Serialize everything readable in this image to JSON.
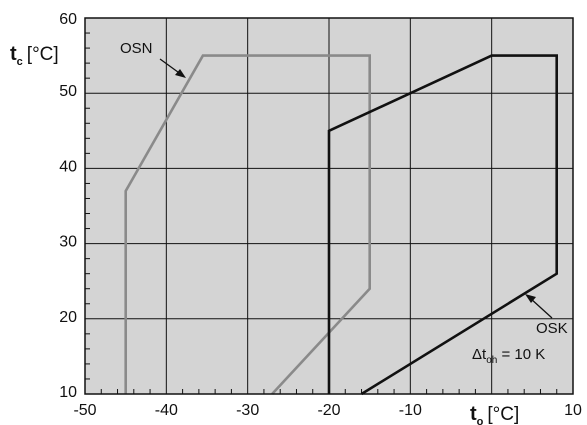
{
  "chart_data": {
    "type": "line",
    "title": "",
    "xlabel": {
      "symbol": "t",
      "subscript": "o",
      "unit": "[°C]"
    },
    "ylabel": {
      "symbol": "t",
      "subscript": "c",
      "unit": "[°C]"
    },
    "xlim": [
      -50,
      10
    ],
    "ylim": [
      10,
      60
    ],
    "xticks": [
      -50,
      -40,
      -30,
      -20,
      -10,
      0,
      10
    ],
    "xtick_labels": [
      "-50",
      "-40",
      "-30",
      "-20",
      "-10",
      "0",
      "10"
    ],
    "yticks": [
      10,
      20,
      30,
      40,
      50,
      60
    ],
    "ytick_labels": [
      "10",
      "20",
      "30",
      "40",
      "50",
      "60"
    ],
    "grid": true,
    "background_color": "#d4d4d4",
    "series": [
      {
        "name": "OSN",
        "color": "#8a8a8a",
        "points": [
          [
            -45,
            10
          ],
          [
            -45,
            37
          ],
          [
            -35.5,
            55
          ],
          [
            -15,
            55
          ],
          [
            -15,
            24
          ],
          [
            -27,
            10
          ]
        ]
      },
      {
        "name": "OSK",
        "color": "#111111",
        "points": [
          [
            -20,
            10
          ],
          [
            -20,
            45
          ],
          [
            0,
            55
          ],
          [
            8,
            55
          ],
          [
            8,
            26
          ],
          [
            -16,
            10
          ]
        ]
      }
    ],
    "annotations": [
      {
        "main": "Δt",
        "subscript": "oh",
        "rest": " = 10 K",
        "x": -12.8,
        "y": 12.7
      }
    ]
  }
}
